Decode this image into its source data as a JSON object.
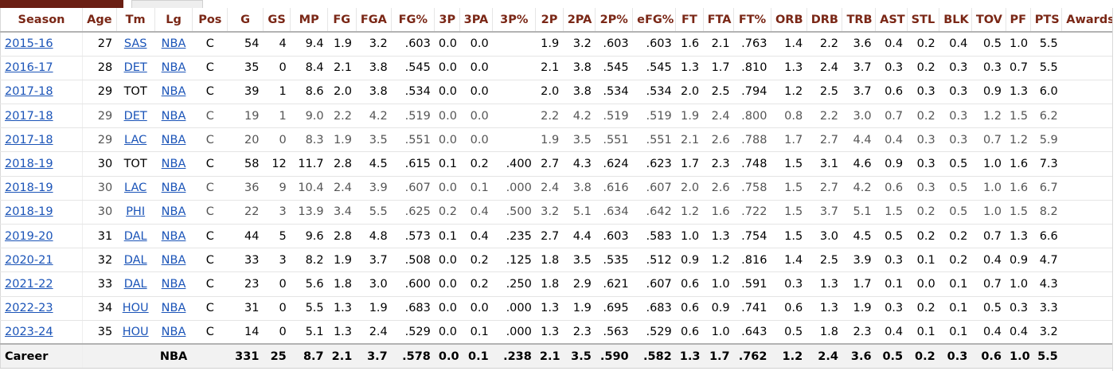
{
  "columns": [
    "Season",
    "Age",
    "Tm",
    "Lg",
    "Pos",
    "G",
    "GS",
    "MP",
    "FG",
    "FGA",
    "FG%",
    "3P",
    "3PA",
    "3P%",
    "2P",
    "2PA",
    "2P%",
    "eFG%",
    "FT",
    "FTA",
    "FT%",
    "ORB",
    "DRB",
    "TRB",
    "AST",
    "STL",
    "BLK",
    "TOV",
    "PF",
    "PTS",
    "Awards"
  ],
  "rows": [
    {
      "season": "2015-16",
      "age": "27",
      "tm": "SAS",
      "lg": "NBA",
      "pos": "C",
      "g": "54",
      "gs": "4",
      "mp": "9.4",
      "fg": "1.9",
      "fga": "3.2",
      "fgp": ".603",
      "p3": "0.0",
      "pa3": "0.0",
      "pp3": "",
      "p2": "1.9",
      "pa2": "3.2",
      "pp2": ".603",
      "efg": ".603",
      "ft": "1.6",
      "fta": "2.1",
      "ftp": ".763",
      "orb": "1.4",
      "drb": "2.2",
      "trb": "3.6",
      "ast": "0.4",
      "stl": "0.2",
      "blk": "0.4",
      "tov": "0.5",
      "pf": "1.0",
      "pts": "5.5",
      "awards": ""
    },
    {
      "season": "2016-17",
      "age": "28",
      "tm": "DET",
      "lg": "NBA",
      "pos": "C",
      "g": "35",
      "gs": "0",
      "mp": "8.4",
      "fg": "2.1",
      "fga": "3.8",
      "fgp": ".545",
      "p3": "0.0",
      "pa3": "0.0",
      "pp3": "",
      "p2": "2.1",
      "pa2": "3.8",
      "pp2": ".545",
      "efg": ".545",
      "ft": "1.3",
      "fta": "1.7",
      "ftp": ".810",
      "orb": "1.3",
      "drb": "2.4",
      "trb": "3.7",
      "ast": "0.3",
      "stl": "0.2",
      "blk": "0.3",
      "tov": "0.3",
      "pf": "0.7",
      "pts": "5.5",
      "awards": ""
    },
    {
      "season": "2017-18",
      "age": "29",
      "tm": "TOT",
      "lg": "NBA",
      "pos": "C",
      "g": "39",
      "gs": "1",
      "mp": "8.6",
      "fg": "2.0",
      "fga": "3.8",
      "fgp": ".534",
      "p3": "0.0",
      "pa3": "0.0",
      "pp3": "",
      "p2": "2.0",
      "pa2": "3.8",
      "pp2": ".534",
      "efg": ".534",
      "ft": "2.0",
      "fta": "2.5",
      "ftp": ".794",
      "orb": "1.2",
      "drb": "2.5",
      "trb": "3.7",
      "ast": "0.6",
      "stl": "0.3",
      "blk": "0.3",
      "tov": "0.9",
      "pf": "1.3",
      "pts": "6.0",
      "awards": ""
    },
    {
      "season": "2017-18",
      "age": "29",
      "tm": "DET",
      "lg": "NBA",
      "pos": "C",
      "g": "19",
      "gs": "1",
      "mp": "9.0",
      "fg": "2.2",
      "fga": "4.2",
      "fgp": ".519",
      "p3": "0.0",
      "pa3": "0.0",
      "pp3": "",
      "p2": "2.2",
      "pa2": "4.2",
      "pp2": ".519",
      "efg": ".519",
      "ft": "1.9",
      "fta": "2.4",
      "ftp": ".800",
      "orb": "0.8",
      "drb": "2.2",
      "trb": "3.0",
      "ast": "0.7",
      "stl": "0.2",
      "blk": "0.3",
      "tov": "1.2",
      "pf": "1.5",
      "pts": "6.2",
      "awards": "",
      "partial": true
    },
    {
      "season": "2017-18",
      "age": "29",
      "tm": "LAC",
      "lg": "NBA",
      "pos": "C",
      "g": "20",
      "gs": "0",
      "mp": "8.3",
      "fg": "1.9",
      "fga": "3.5",
      "fgp": ".551",
      "p3": "0.0",
      "pa3": "0.0",
      "pp3": "",
      "p2": "1.9",
      "pa2": "3.5",
      "pp2": ".551",
      "efg": ".551",
      "ft": "2.1",
      "fta": "2.6",
      "ftp": ".788",
      "orb": "1.7",
      "drb": "2.7",
      "trb": "4.4",
      "ast": "0.4",
      "stl": "0.3",
      "blk": "0.3",
      "tov": "0.7",
      "pf": "1.2",
      "pts": "5.9",
      "awards": "",
      "partial": true
    },
    {
      "season": "2018-19",
      "age": "30",
      "tm": "TOT",
      "lg": "NBA",
      "pos": "C",
      "g": "58",
      "gs": "12",
      "mp": "11.7",
      "fg": "2.8",
      "fga": "4.5",
      "fgp": ".615",
      "p3": "0.1",
      "pa3": "0.2",
      "pp3": ".400",
      "p2": "2.7",
      "pa2": "4.3",
      "pp2": ".624",
      "efg": ".623",
      "ft": "1.7",
      "fta": "2.3",
      "ftp": ".748",
      "orb": "1.5",
      "drb": "3.1",
      "trb": "4.6",
      "ast": "0.9",
      "stl": "0.3",
      "blk": "0.5",
      "tov": "1.0",
      "pf": "1.6",
      "pts": "7.3",
      "awards": ""
    },
    {
      "season": "2018-19",
      "age": "30",
      "tm": "LAC",
      "lg": "NBA",
      "pos": "C",
      "g": "36",
      "gs": "9",
      "mp": "10.4",
      "fg": "2.4",
      "fga": "3.9",
      "fgp": ".607",
      "p3": "0.0",
      "pa3": "0.1",
      "pp3": ".000",
      "p2": "2.4",
      "pa2": "3.8",
      "pp2": ".616",
      "efg": ".607",
      "ft": "2.0",
      "fta": "2.6",
      "ftp": ".758",
      "orb": "1.5",
      "drb": "2.7",
      "trb": "4.2",
      "ast": "0.6",
      "stl": "0.3",
      "blk": "0.5",
      "tov": "1.0",
      "pf": "1.6",
      "pts": "6.7",
      "awards": "",
      "partial": true
    },
    {
      "season": "2018-19",
      "age": "30",
      "tm": "PHI",
      "lg": "NBA",
      "pos": "C",
      "g": "22",
      "gs": "3",
      "mp": "13.9",
      "fg": "3.4",
      "fga": "5.5",
      "fgp": ".625",
      "p3": "0.2",
      "pa3": "0.4",
      "pp3": ".500",
      "p2": "3.2",
      "pa2": "5.1",
      "pp2": ".634",
      "efg": ".642",
      "ft": "1.2",
      "fta": "1.6",
      "ftp": ".722",
      "orb": "1.5",
      "drb": "3.7",
      "trb": "5.1",
      "ast": "1.5",
      "stl": "0.2",
      "blk": "0.5",
      "tov": "1.0",
      "pf": "1.5",
      "pts": "8.2",
      "awards": "",
      "partial": true
    },
    {
      "season": "2019-20",
      "age": "31",
      "tm": "DAL",
      "lg": "NBA",
      "pos": "C",
      "g": "44",
      "gs": "5",
      "mp": "9.6",
      "fg": "2.8",
      "fga": "4.8",
      "fgp": ".573",
      "p3": "0.1",
      "pa3": "0.4",
      "pp3": ".235",
      "p2": "2.7",
      "pa2": "4.4",
      "pp2": ".603",
      "efg": ".583",
      "ft": "1.0",
      "fta": "1.3",
      "ftp": ".754",
      "orb": "1.5",
      "drb": "3.0",
      "trb": "4.5",
      "ast": "0.5",
      "stl": "0.2",
      "blk": "0.2",
      "tov": "0.7",
      "pf": "1.3",
      "pts": "6.6",
      "awards": ""
    },
    {
      "season": "2020-21",
      "age": "32",
      "tm": "DAL",
      "lg": "NBA",
      "pos": "C",
      "g": "33",
      "gs": "3",
      "mp": "8.2",
      "fg": "1.9",
      "fga": "3.7",
      "fgp": ".508",
      "p3": "0.0",
      "pa3": "0.2",
      "pp3": ".125",
      "p2": "1.8",
      "pa2": "3.5",
      "pp2": ".535",
      "efg": ".512",
      "ft": "0.9",
      "fta": "1.2",
      "ftp": ".816",
      "orb": "1.4",
      "drb": "2.5",
      "trb": "3.9",
      "ast": "0.3",
      "stl": "0.1",
      "blk": "0.2",
      "tov": "0.4",
      "pf": "0.9",
      "pts": "4.7",
      "awards": ""
    },
    {
      "season": "2021-22",
      "age": "33",
      "tm": "DAL",
      "lg": "NBA",
      "pos": "C",
      "g": "23",
      "gs": "0",
      "mp": "5.6",
      "fg": "1.8",
      "fga": "3.0",
      "fgp": ".600",
      "p3": "0.0",
      "pa3": "0.2",
      "pp3": ".250",
      "p2": "1.8",
      "pa2": "2.9",
      "pp2": ".621",
      "efg": ".607",
      "ft": "0.6",
      "fta": "1.0",
      "ftp": ".591",
      "orb": "0.3",
      "drb": "1.3",
      "trb": "1.7",
      "ast": "0.1",
      "stl": "0.0",
      "blk": "0.1",
      "tov": "0.7",
      "pf": "1.0",
      "pts": "4.3",
      "awards": ""
    },
    {
      "season": "2022-23",
      "age": "34",
      "tm": "HOU",
      "lg": "NBA",
      "pos": "C",
      "g": "31",
      "gs": "0",
      "mp": "5.5",
      "fg": "1.3",
      "fga": "1.9",
      "fgp": ".683",
      "p3": "0.0",
      "pa3": "0.0",
      "pp3": ".000",
      "p2": "1.3",
      "pa2": "1.9",
      "pp2": ".695",
      "efg": ".683",
      "ft": "0.6",
      "fta": "0.9",
      "ftp": ".741",
      "orb": "0.6",
      "drb": "1.3",
      "trb": "1.9",
      "ast": "0.3",
      "stl": "0.2",
      "blk": "0.1",
      "tov": "0.5",
      "pf": "0.3",
      "pts": "3.3",
      "awards": ""
    },
    {
      "season": "2023-24",
      "age": "35",
      "tm": "HOU",
      "lg": "NBA",
      "pos": "C",
      "g": "14",
      "gs": "0",
      "mp": "5.1",
      "fg": "1.3",
      "fga": "2.4",
      "fgp": ".529",
      "p3": "0.0",
      "pa3": "0.1",
      "pp3": ".000",
      "p2": "1.3",
      "pa2": "2.3",
      "pp2": ".563",
      "efg": ".529",
      "ft": "0.6",
      "fta": "1.0",
      "ftp": ".643",
      "orb": "0.5",
      "drb": "1.8",
      "trb": "2.3",
      "ast": "0.4",
      "stl": "0.1",
      "blk": "0.1",
      "tov": "0.4",
      "pf": "0.4",
      "pts": "3.2",
      "awards": ""
    }
  ],
  "career": {
    "season": "Career",
    "age": "",
    "tm": "",
    "lg": "NBA",
    "pos": "",
    "g": "331",
    "gs": "25",
    "mp": "8.7",
    "fg": "2.1",
    "fga": "3.7",
    "fgp": ".578",
    "p3": "0.0",
    "pa3": "0.1",
    "pp3": ".238",
    "p2": "2.1",
    "pa2": "3.5",
    "pp2": ".590",
    "efg": ".582",
    "ft": "1.3",
    "fta": "1.7",
    "ftp": ".762",
    "orb": "1.2",
    "drb": "2.4",
    "trb": "3.6",
    "ast": "0.5",
    "stl": "0.2",
    "blk": "0.3",
    "tov": "0.6",
    "pf": "1.0",
    "pts": "5.5",
    "awards": ""
  },
  "colors": {
    "header_text": "#7a2716",
    "link": "#1b54b8",
    "tab_active": "#6a1f14"
  }
}
